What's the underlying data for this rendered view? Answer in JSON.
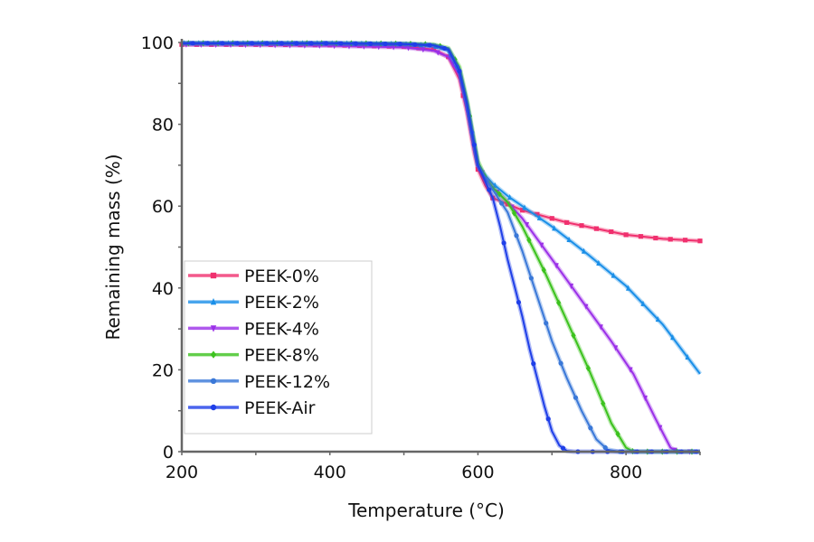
{
  "chart_data": {
    "type": "line",
    "title": "",
    "xlabel": "Temperature (°C)",
    "ylabel": "Remaining mass (%)",
    "xlim": [
      200,
      900
    ],
    "ylim": [
      0,
      100
    ],
    "xticks": [
      200,
      400,
      600,
      800
    ],
    "yticks": [
      0,
      20,
      40,
      60,
      80,
      100
    ],
    "xtick_labels": [
      "200",
      "400",
      "600",
      "800"
    ],
    "ytick_labels": [
      "0",
      "20",
      "40",
      "60",
      "80",
      "100"
    ],
    "grid": false,
    "legend_position": "lower-left",
    "series": [
      {
        "name": "PEEK-0%",
        "color": "#f0306e",
        "marker": "square",
        "x": [
          200,
          300,
          400,
          500,
          540,
          560,
          575,
          585,
          595,
          600,
          610,
          620,
          640,
          660,
          680,
          700,
          720,
          760,
          800,
          850,
          900
        ],
        "y": [
          99.5,
          99.5,
          99.4,
          99.0,
          98.3,
          96.5,
          91,
          83,
          73,
          69,
          65,
          62,
          60.5,
          59,
          58,
          57,
          56,
          54.5,
          53,
          52,
          51.5
        ]
      },
      {
        "name": "PEEK-2%",
        "color": "#1a8fe8",
        "marker": "triangle-up",
        "x": [
          200,
          300,
          400,
          500,
          540,
          560,
          575,
          585,
          595,
          600,
          610,
          620,
          640,
          660,
          700,
          750,
          800,
          850,
          900
        ],
        "y": [
          99.8,
          99.8,
          99.8,
          99.6,
          99.2,
          98,
          93,
          85,
          75,
          70,
          67.5,
          65.5,
          62.5,
          60,
          55,
          48,
          40.5,
          31,
          19
        ]
      },
      {
        "name": "PEEK-4%",
        "color": "#9b30e8",
        "marker": "triangle-down",
        "x": [
          200,
          300,
          400,
          500,
          540,
          560,
          575,
          585,
          595,
          600,
          610,
          620,
          640,
          660,
          700,
          740,
          780,
          810,
          840,
          860,
          870,
          900
        ],
        "y": [
          99.5,
          99.4,
          99.2,
          98.8,
          98,
          96.5,
          92,
          84,
          74,
          70,
          67,
          64.5,
          61,
          57,
          47,
          37,
          27,
          19,
          8,
          1,
          0,
          0
        ]
      },
      {
        "name": "PEEK-8%",
        "color": "#3cc21e",
        "marker": "diamond",
        "x": [
          200,
          300,
          400,
          500,
          540,
          560,
          575,
          585,
          595,
          600,
          610,
          620,
          640,
          660,
          690,
          720,
          750,
          780,
          800,
          810,
          900
        ],
        "y": [
          99.8,
          99.8,
          99.8,
          99.7,
          99.5,
          98.6,
          94,
          86,
          76,
          71,
          67,
          64.5,
          61,
          55,
          44,
          32,
          20,
          7,
          1,
          0,
          0
        ]
      },
      {
        "name": "PEEK-12%",
        "color": "#3a78d8",
        "marker": "circle",
        "x": [
          200,
          300,
          400,
          500,
          540,
          560,
          575,
          585,
          595,
          600,
          610,
          620,
          640,
          660,
          680,
          700,
          720,
          740,
          760,
          775,
          790,
          900
        ],
        "y": [
          99.8,
          99.8,
          99.8,
          99.6,
          99.3,
          98.3,
          93,
          85,
          75,
          70,
          67,
          64,
          58.5,
          49,
          38,
          27,
          18,
          10,
          3,
          0.5,
          0,
          0
        ]
      },
      {
        "name": "PEEK-Air",
        "color": "#1f3fe8",
        "marker": "circle",
        "x": [
          200,
          300,
          400,
          500,
          540,
          560,
          575,
          585,
          595,
          600,
          610,
          620,
          630,
          640,
          650,
          660,
          670,
          680,
          690,
          700,
          710,
          720,
          730,
          900
        ],
        "y": [
          99.8,
          99.8,
          99.8,
          99.6,
          99.3,
          98.3,
          93,
          85,
          75,
          70,
          66,
          62,
          55,
          47,
          40,
          33,
          25,
          18,
          11,
          5,
          1.5,
          0.2,
          0,
          0
        ]
      }
    ]
  }
}
